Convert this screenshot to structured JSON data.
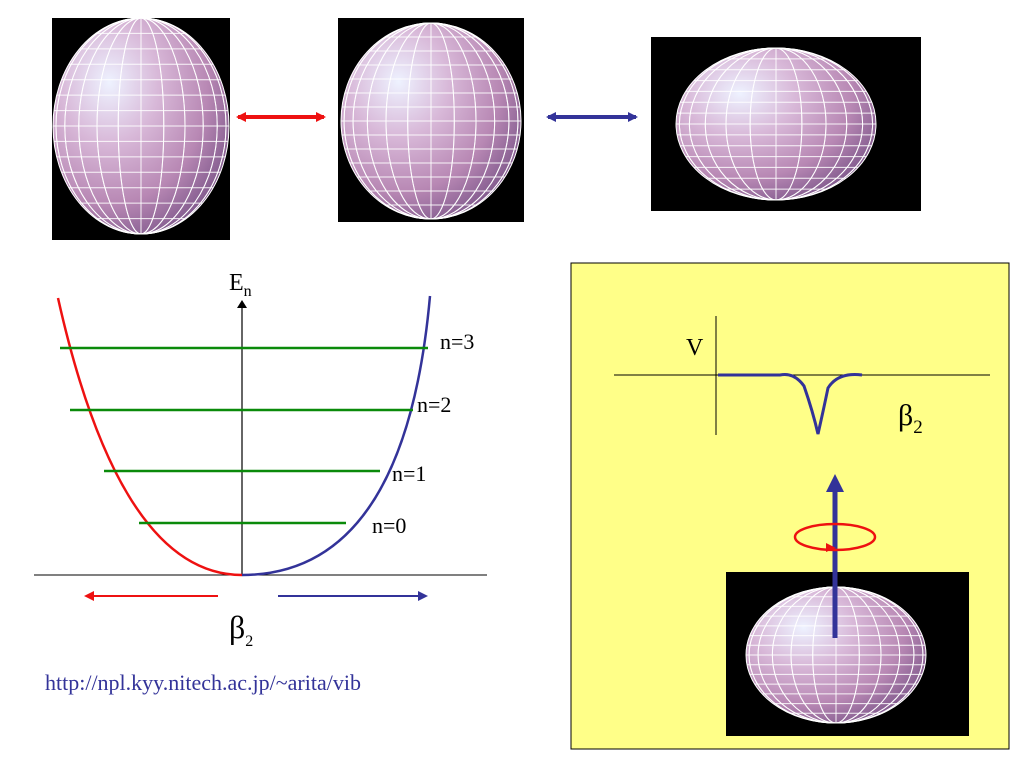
{
  "potential_diagram": {
    "axis_label": "E",
    "axis_label_sub": "n",
    "x_label": "β",
    "x_label_sub": "2",
    "levels": [
      "n=3",
      "n=2",
      "n=1",
      "n=0"
    ]
  },
  "url_text": "http://npl.kyy.nitech.ac.jp/~arita/vib",
  "inset": {
    "v_label": "V",
    "x_label": "β",
    "x_label_sub": "2"
  },
  "colors": {
    "red": "#ee1111",
    "blue": "#333399",
    "green": "#0a8a0a",
    "inset_bg": "#ffff88",
    "url": "#333399"
  },
  "shapes": [
    "prolate-spheroid",
    "sphere",
    "oblate-spheroid",
    "rotating-oblate-spheroid"
  ]
}
